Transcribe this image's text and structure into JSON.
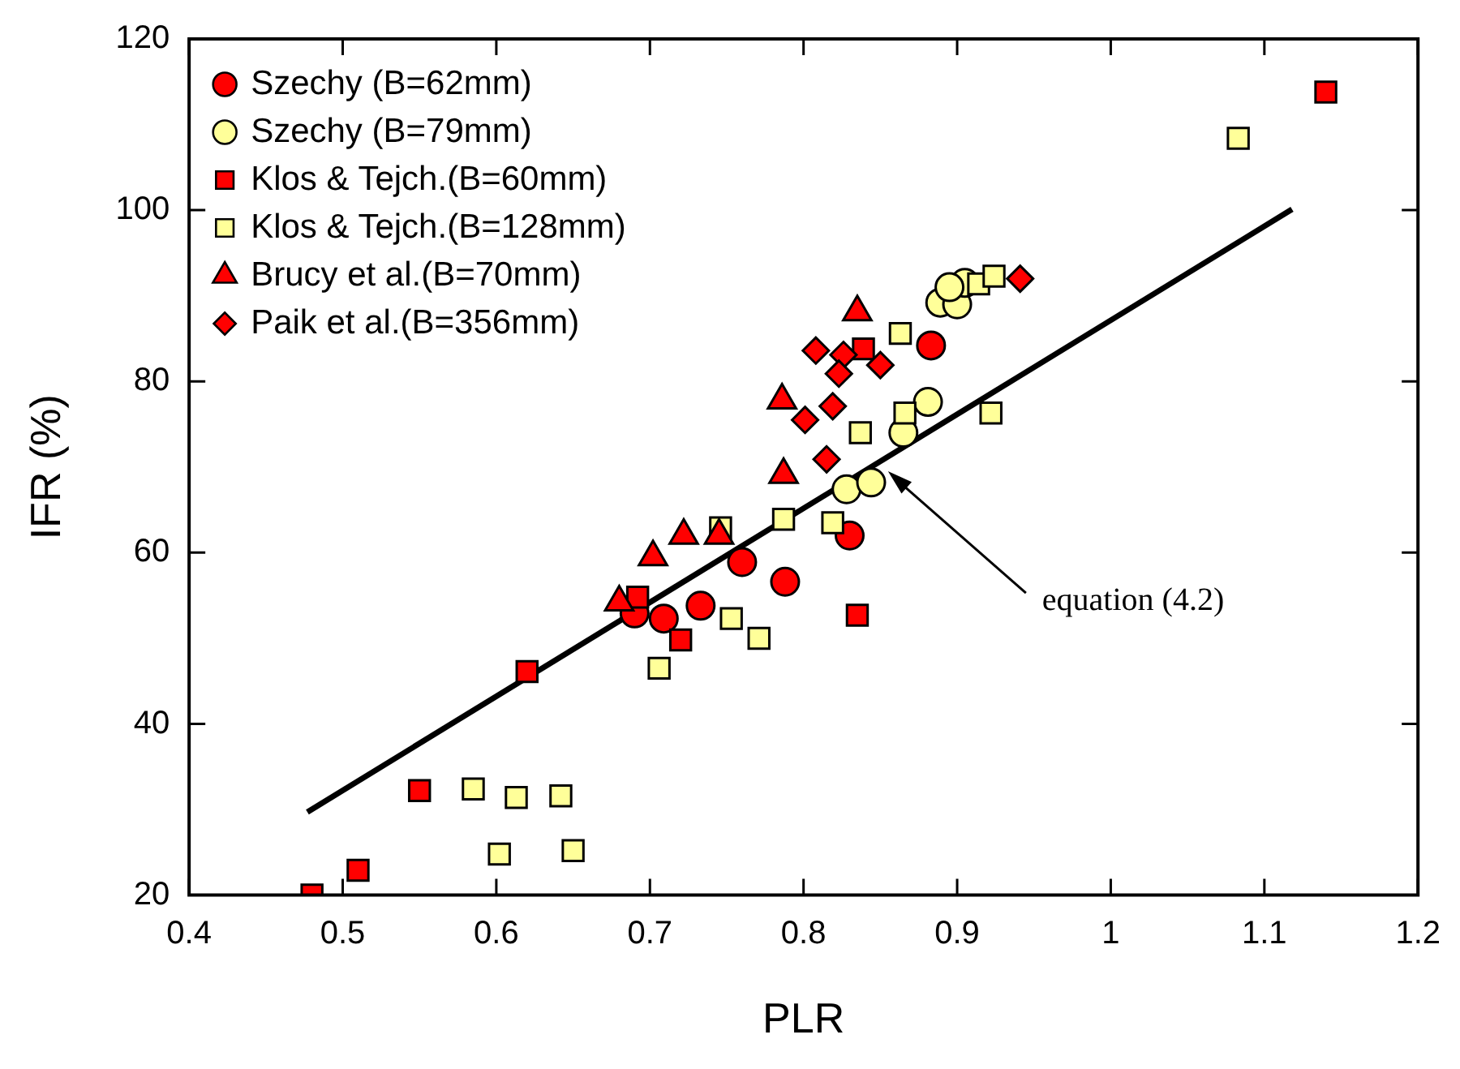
{
  "chart_data": {
    "type": "scatter",
    "xlabel": "PLR",
    "ylabel": "IFR (%)",
    "xlim": [
      0.4,
      1.2
    ],
    "xticks": [
      0.4,
      0.5,
      0.6,
      0.7,
      0.8,
      0.9,
      1.0,
      1.1,
      1.2
    ],
    "ylim": [
      20,
      120
    ],
    "yticks": [
      20,
      40,
      60,
      80,
      100,
      120
    ],
    "grid": false,
    "legend": "top left",
    "series": [
      {
        "name": "Szechy (B=62mm)",
        "color": "#ff0000",
        "marker": "circle",
        "x": [
          0.69,
          0.709,
          0.733,
          0.76,
          0.788,
          0.83,
          0.883
        ],
        "values": [
          52.9,
          52.3,
          53.8,
          58.9,
          56.6,
          62.0,
          84.2
        ]
      },
      {
        "name": "Szechy (B=79mm)",
        "color": "#ffff99",
        "marker": "circle",
        "x": [
          0.828,
          0.844,
          0.865,
          0.881,
          0.889,
          0.9,
          0.905,
          0.895
        ],
        "values": [
          67.4,
          68.2,
          74.0,
          77.6,
          89.2,
          89.0,
          91.5,
          91.0
        ]
      },
      {
        "name": "Klos & Tejch.(B=60mm)",
        "color": "#ff0000",
        "marker": "square",
        "x": [
          0.48,
          0.51,
          0.55,
          0.62,
          0.692,
          0.72,
          0.835,
          0.839,
          1.14
        ],
        "values": [
          20.0,
          22.9,
          32.2,
          46.1,
          54.8,
          49.8,
          52.7,
          83.8,
          113.8
        ]
      },
      {
        "name": "Klos & Tejch.(B=128mm)",
        "color": "#ffff99",
        "marker": "square",
        "x": [
          0.585,
          0.613,
          0.642,
          0.602,
          0.65,
          0.706,
          0.753,
          0.771,
          0.746,
          0.787,
          0.819,
          0.837,
          0.866,
          0.922,
          0.863,
          0.914,
          0.924,
          1.083
        ],
        "values": [
          32.4,
          31.4,
          31.6,
          24.8,
          25.2,
          46.5,
          52.3,
          50.0,
          62.9,
          63.9,
          63.5,
          74.0,
          76.3,
          76.3,
          85.6,
          91.4,
          92.3,
          108.4
        ]
      },
      {
        "name": "Brucy et al.(B=70mm)",
        "color": "#ff0000",
        "marker": "triangle",
        "x": [
          0.68,
          0.702,
          0.722,
          0.745,
          0.787,
          0.786,
          0.835
        ],
        "values": [
          54.2,
          59.5,
          62.0,
          62.0,
          69.1,
          77.8,
          88.1
        ]
      },
      {
        "name": "Paik et al.(B=356mm)",
        "color": "#ff0000",
        "marker": "diamond",
        "x": [
          0.808,
          0.826,
          0.823,
          0.85,
          0.819,
          0.801,
          0.815,
          0.941
        ],
        "values": [
          83.6,
          83.1,
          80.9,
          81.9,
          77.1,
          75.5,
          70.9,
          92.0
        ]
      },
      {
        "type": "line",
        "color": "#000000",
        "marker": "none",
        "x": [
          0.477,
          1.118
        ],
        "values": [
          29.7,
          100.1
        ]
      }
    ],
    "annotations": [
      {
        "text": "equation (4.2)",
        "x": 0.855,
        "y": 69.5
      }
    ]
  }
}
